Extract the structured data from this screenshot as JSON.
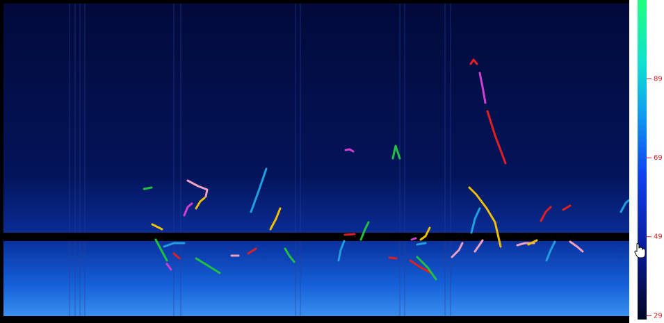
{
  "colorbar": {
    "range": [
      28,
      109
    ],
    "ticks": [
      89,
      69,
      49,
      29
    ]
  }
}
